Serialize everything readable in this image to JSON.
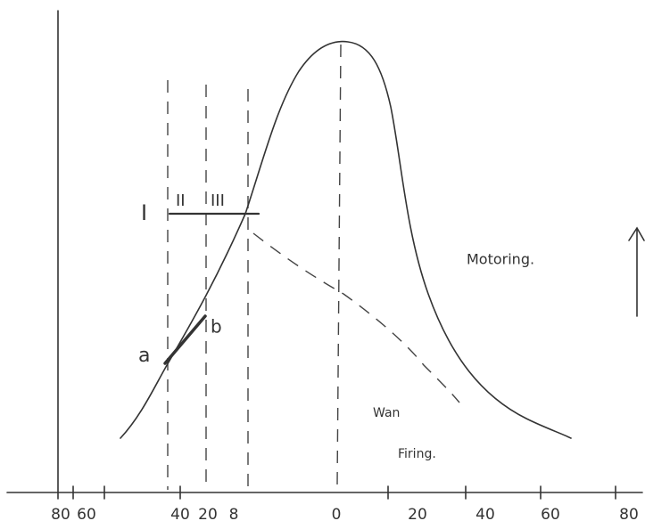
{
  "labels": {
    "zone_1": "I",
    "zone_2": "II",
    "zone_3": "III",
    "point_a": "a",
    "point_b": "b",
    "motoring": "Motoring.",
    "wan": "Wan",
    "firing": "Firing."
  },
  "x_axis": {
    "ticks": [
      "80",
      "60",
      "40",
      "20",
      "8",
      "0",
      "20",
      "40",
      "60",
      "80"
    ]
  }
}
